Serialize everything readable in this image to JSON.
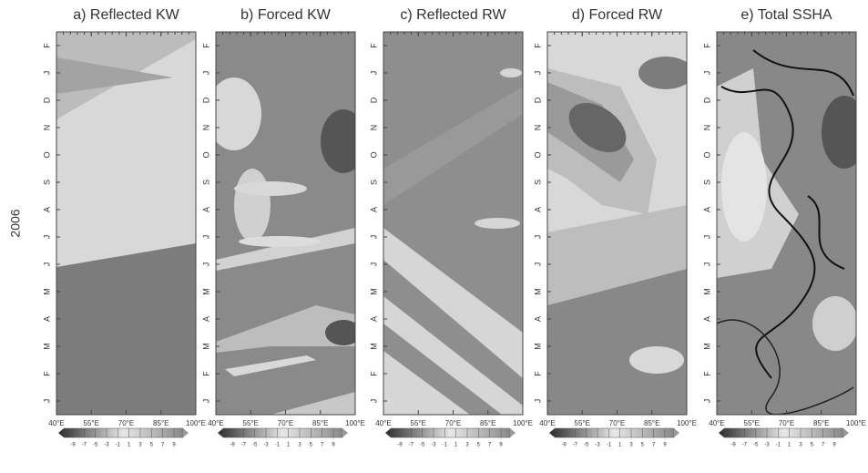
{
  "chart_data": [
    {
      "type": "contour",
      "title": "a) Reflected KW",
      "ylabel": "2006",
      "categories": [
        "J",
        "F",
        "M",
        "A",
        "M",
        "J",
        "J",
        "A",
        "S",
        "O",
        "N",
        "D",
        "J",
        "F"
      ],
      "xlim": [
        40,
        100
      ],
      "xticks": [
        {
          "value": 40,
          "label": "40°E"
        },
        {
          "value": 55,
          "label": "55°E"
        },
        {
          "value": 70,
          "label": "70°E"
        },
        {
          "value": 85,
          "label": "85°E"
        },
        {
          "value": 100,
          "label": "100°E"
        }
      ],
      "colorbar_ticks": [
        -9,
        -7,
        -5,
        -3,
        -1,
        1,
        3,
        5,
        7,
        9
      ]
    },
    {
      "type": "contour",
      "title": "b) Forced KW",
      "categories": [
        "J",
        "F",
        "M",
        "A",
        "M",
        "J",
        "J",
        "A",
        "S",
        "O",
        "N",
        "D",
        "J",
        "F"
      ],
      "xlim": [
        40,
        100
      ],
      "xticks": [
        {
          "value": 40,
          "label": "40°E"
        },
        {
          "value": 55,
          "label": "55°E"
        },
        {
          "value": 70,
          "label": "70°E"
        },
        {
          "value": 85,
          "label": "85°E"
        },
        {
          "value": 100,
          "label": "100°E"
        }
      ],
      "colorbar_ticks": [
        -9,
        -7,
        -5,
        -3,
        -1,
        1,
        3,
        5,
        7,
        9
      ]
    },
    {
      "type": "contour",
      "title": "c) Reflected RW",
      "categories": [
        "J",
        "F",
        "M",
        "A",
        "M",
        "J",
        "J",
        "A",
        "S",
        "O",
        "N",
        "D",
        "J",
        "F"
      ],
      "xlim": [
        40,
        100
      ],
      "xticks": [
        {
          "value": 40,
          "label": "40°E"
        },
        {
          "value": 55,
          "label": "55°E"
        },
        {
          "value": 70,
          "label": "70°E"
        },
        {
          "value": 85,
          "label": "85°E"
        },
        {
          "value": 100,
          "label": "100°E"
        }
      ],
      "colorbar_ticks": [
        -9,
        -7,
        -5,
        -3,
        -1,
        1,
        3,
        5,
        7,
        9
      ]
    },
    {
      "type": "contour",
      "title": "d) Forced RW",
      "categories": [
        "J",
        "F",
        "M",
        "A",
        "M",
        "J",
        "J",
        "A",
        "S",
        "O",
        "N",
        "D",
        "J",
        "F"
      ],
      "xlim": [
        40,
        100
      ],
      "xticks": [
        {
          "value": 40,
          "label": "40°E"
        },
        {
          "value": 55,
          "label": "55°E"
        },
        {
          "value": 70,
          "label": "70°E"
        },
        {
          "value": 85,
          "label": "85°E"
        },
        {
          "value": 100,
          "label": "100°E"
        }
      ],
      "colorbar_ticks": [
        -9,
        -7,
        -5,
        -3,
        -1,
        1,
        3,
        5,
        7,
        9
      ]
    },
    {
      "type": "contour",
      "title": "e) Total SSHA",
      "categories": [
        "J",
        "F",
        "M",
        "A",
        "M",
        "J",
        "J",
        "A",
        "S",
        "O",
        "N",
        "D",
        "J",
        "F"
      ],
      "xlim": [
        40,
        100
      ],
      "xticks": [
        {
          "value": 40,
          "label": "40°E"
        },
        {
          "value": 55,
          "label": "55°E"
        },
        {
          "value": 70,
          "label": "70°E"
        },
        {
          "value": 85,
          "label": "85°E"
        },
        {
          "value": 100,
          "label": "100°E"
        }
      ],
      "colorbar_ticks": [
        -9,
        -7,
        -5,
        -3,
        -1,
        1,
        3,
        5,
        7,
        9
      ]
    }
  ]
}
